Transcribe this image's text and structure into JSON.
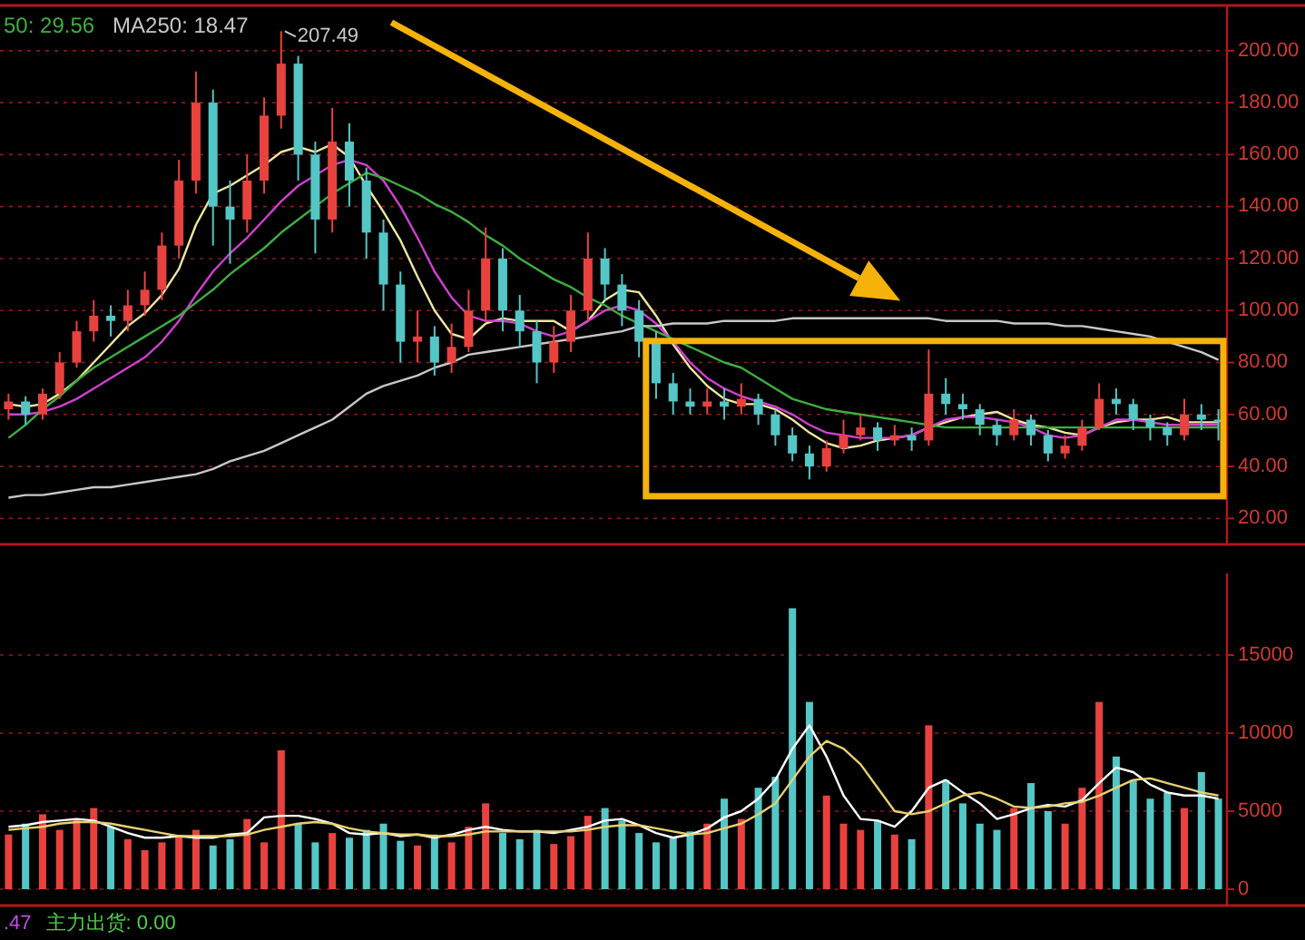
{
  "chart_data": [
    {
      "type": "candlestick",
      "categories": [
        null,
        null,
        null,
        null,
        null,
        null,
        null,
        null,
        null,
        null,
        null,
        null,
        null,
        null,
        null,
        null,
        null,
        null,
        null,
        null,
        null,
        null,
        null,
        null,
        null,
        null,
        null,
        null,
        null,
        null,
        null,
        null,
        null,
        null,
        null,
        null,
        null,
        null,
        null,
        null,
        null,
        null,
        null,
        null,
        null,
        null,
        null,
        null,
        null,
        null,
        null,
        null,
        null,
        null,
        null,
        null,
        null,
        null,
        null,
        null,
        null,
        null,
        null,
        null,
        null,
        null,
        null,
        null,
        null,
        null,
        null,
        null
      ],
      "ohlc": [
        [
          62,
          68,
          58,
          65
        ],
        [
          65,
          67,
          56,
          60
        ],
        [
          60,
          70,
          58,
          68
        ],
        [
          68,
          84,
          66,
          80
        ],
        [
          80,
          96,
          78,
          92
        ],
        [
          92,
          104,
          88,
          98
        ],
        [
          98,
          102,
          90,
          96
        ],
        [
          96,
          108,
          92,
          102
        ],
        [
          102,
          115,
          98,
          108
        ],
        [
          108,
          130,
          104,
          125
        ],
        [
          125,
          158,
          120,
          150
        ],
        [
          150,
          192,
          145,
          180
        ],
        [
          180,
          185,
          125,
          140
        ],
        [
          140,
          150,
          118,
          135
        ],
        [
          135,
          160,
          130,
          150
        ],
        [
          150,
          182,
          145,
          175
        ],
        [
          175,
          207.49,
          170,
          195
        ],
        [
          195,
          198,
          150,
          160
        ],
        [
          160,
          165,
          122,
          135
        ],
        [
          135,
          178,
          130,
          165
        ],
        [
          165,
          172,
          140,
          150
        ],
        [
          150,
          155,
          120,
          130
        ],
        [
          130,
          135,
          100,
          110
        ],
        [
          110,
          115,
          80,
          88
        ],
        [
          88,
          100,
          80,
          90
        ],
        [
          90,
          94,
          75,
          80
        ],
        [
          80,
          95,
          76,
          86
        ],
        [
          86,
          108,
          84,
          100
        ],
        [
          100,
          132,
          96,
          120
        ],
        [
          120,
          124,
          92,
          100
        ],
        [
          100,
          106,
          86,
          92
        ],
        [
          92,
          96,
          72,
          80
        ],
        [
          80,
          94,
          76,
          88
        ],
        [
          88,
          106,
          84,
          100
        ],
        [
          100,
          130,
          96,
          120
        ],
        [
          120,
          124,
          104,
          110
        ],
        [
          110,
          114,
          94,
          100
        ],
        [
          100,
          104,
          82,
          88
        ],
        [
          88,
          92,
          66,
          72
        ],
        [
          72,
          76,
          60,
          65
        ],
        [
          65,
          70,
          60,
          63
        ],
        [
          63,
          70,
          60,
          65
        ],
        [
          65,
          70,
          58,
          63
        ],
        [
          63,
          72,
          60,
          66
        ],
        [
          66,
          68,
          56,
          60
        ],
        [
          60,
          62,
          48,
          52
        ],
        [
          52,
          55,
          42,
          45
        ],
        [
          45,
          48,
          35,
          40
        ],
        [
          40,
          50,
          38,
          47
        ],
        [
          47,
          58,
          45,
          52
        ],
        [
          52,
          60,
          50,
          55
        ],
        [
          55,
          57,
          46,
          50
        ],
        [
          50,
          56,
          48,
          52
        ],
        [
          52,
          55,
          46,
          50
        ],
        [
          50,
          85,
          48,
          68
        ],
        [
          68,
          74,
          60,
          64
        ],
        [
          64,
          68,
          58,
          62
        ],
        [
          62,
          64,
          52,
          56
        ],
        [
          56,
          58,
          48,
          52
        ],
        [
          52,
          62,
          50,
          58
        ],
        [
          58,
          60,
          48,
          52
        ],
        [
          52,
          54,
          42,
          45
        ],
        [
          45,
          52,
          43,
          48
        ],
        [
          48,
          58,
          46,
          55
        ],
        [
          55,
          72,
          54,
          66
        ],
        [
          66,
          70,
          60,
          64
        ],
        [
          64,
          66,
          54,
          58
        ],
        [
          58,
          60,
          50,
          55
        ],
        [
          55,
          57,
          48,
          52
        ],
        [
          52,
          66,
          50,
          60
        ],
        [
          60,
          64,
          54,
          58
        ],
        [
          58,
          62,
          50,
          57
        ]
      ],
      "colors": [
        "#e8423f",
        "#54c6c6",
        "#e8423f",
        "#e8423f",
        "#e8423f",
        "#e8423f",
        "#54c6c6",
        "#e8423f",
        "#e8423f",
        "#e8423f",
        "#e8423f",
        "#e8423f",
        "#54c6c6",
        "#54c6c6",
        "#e8423f",
        "#e8423f",
        "#e8423f",
        "#54c6c6",
        "#54c6c6",
        "#e8423f",
        "#54c6c6",
        "#54c6c6",
        "#54c6c6",
        "#54c6c6",
        "#e8423f",
        "#54c6c6",
        "#e8423f",
        "#e8423f",
        "#e8423f",
        "#54c6c6",
        "#54c6c6",
        "#54c6c6",
        "#e8423f",
        "#e8423f",
        "#e8423f",
        "#54c6c6",
        "#54c6c6",
        "#54c6c6",
        "#54c6c6",
        "#54c6c6",
        "#54c6c6",
        "#e8423f",
        "#54c6c6",
        "#e8423f",
        "#54c6c6",
        "#54c6c6",
        "#54c6c6",
        "#54c6c6",
        "#e8423f",
        "#e8423f",
        "#e8423f",
        "#54c6c6",
        "#e8423f",
        "#54c6c6",
        "#e8423f",
        "#54c6c6",
        "#54c6c6",
        "#54c6c6",
        "#54c6c6",
        "#e8423f",
        "#54c6c6",
        "#54c6c6",
        "#e8423f",
        "#e8423f",
        "#e8423f",
        "#54c6c6",
        "#54c6c6",
        "#54c6c6",
        "#54c6c6",
        "#e8423f",
        "#54c6c6",
        "#54c6c6"
      ],
      "series": [
        {
          "type": "line",
          "color": "#f0e6a0",
          "values": [
            64,
            63,
            64,
            68,
            73,
            80,
            87,
            94,
            99,
            106,
            116,
            133,
            145,
            148,
            152,
            156,
            161,
            163,
            161,
            164,
            159,
            148,
            138,
            127,
            113,
            100,
            91,
            89,
            95,
            97,
            96,
            96,
            96,
            92,
            96,
            104,
            108,
            107,
            98,
            87,
            78,
            71,
            66,
            64,
            64,
            62,
            58,
            53,
            49,
            47,
            48,
            50,
            51,
            52,
            55,
            57,
            59,
            60,
            61,
            58,
            56,
            55,
            53,
            52,
            55,
            57,
            58,
            58,
            59,
            57,
            57,
            57
          ]
        },
        {
          "type": "line",
          "color": "#d040d0",
          "values": [
            60,
            60,
            61,
            63,
            66,
            70,
            74,
            78,
            82,
            88,
            96,
            106,
            115,
            122,
            128,
            135,
            142,
            148,
            152,
            156,
            158,
            156,
            150,
            140,
            128,
            115,
            105,
            98,
            96,
            96,
            95,
            92,
            90,
            92,
            96,
            100,
            102,
            100,
            95,
            88,
            80,
            74,
            70,
            67,
            65,
            63,
            60,
            56,
            53,
            52,
            51,
            51,
            51,
            52,
            55,
            58,
            59,
            59,
            58,
            57,
            55,
            52,
            51,
            52,
            55,
            58,
            58,
            57,
            56,
            56,
            56,
            56
          ]
        },
        {
          "type": "line",
          "name": "50: 29.56",
          "color": "#3fae3f",
          "values": [
            51,
            56,
            62,
            67,
            73,
            78,
            82,
            86,
            90,
            94,
            98,
            103,
            108,
            114,
            119,
            124,
            130,
            135,
            140,
            145,
            149,
            153,
            151,
            148,
            145,
            141,
            138,
            134,
            129,
            125,
            120,
            116,
            112,
            109,
            105,
            102,
            98,
            95,
            92,
            89,
            86,
            83,
            80,
            78,
            74,
            70,
            66,
            64,
            62,
            61,
            60,
            59,
            58,
            57,
            56,
            55,
            55,
            55,
            55,
            55,
            55,
            55,
            55,
            55,
            55,
            55,
            55,
            55,
            55,
            55,
            55,
            55
          ]
        },
        {
          "type": "line",
          "name": "MA250: 18.47",
          "color": "#c8c8c8",
          "values": [
            28,
            29,
            29,
            30,
            31,
            32,
            32,
            33,
            34,
            35,
            36,
            37,
            39,
            42,
            44,
            46,
            49,
            52,
            55,
            58,
            63,
            68,
            71,
            73,
            75,
            78,
            80,
            83,
            84,
            85,
            86,
            87,
            88,
            89,
            90,
            91,
            92,
            94,
            94,
            95,
            95,
            95,
            96,
            96,
            96,
            96,
            97,
            97,
            97,
            97,
            97,
            97,
            97,
            97,
            97,
            96,
            96,
            96,
            96,
            95,
            95,
            95,
            94,
            94,
            93,
            92,
            91,
            90,
            88,
            86,
            84,
            81
          ]
        }
      ],
      "ylim": [
        10,
        216
      ],
      "yticks": [
        {
          "value": 20,
          "label": "20.00"
        },
        {
          "value": 40,
          "label": "40.00"
        },
        {
          "value": 60,
          "label": "60.00"
        },
        {
          "value": 80,
          "label": "80.00"
        },
        {
          "value": 100,
          "label": "100.00"
        },
        {
          "value": 120,
          "label": "120.00"
        },
        {
          "value": 140,
          "label": "140.00"
        },
        {
          "value": 160,
          "label": "160.00"
        },
        {
          "value": 180,
          "label": "180.00"
        },
        {
          "value": 200,
          "label": "200.00"
        }
      ],
      "annotations": [
        "207.49"
      ],
      "grid": "y",
      "legend": "top left"
    },
    {
      "type": "bar",
      "categories": [
        null,
        null,
        null,
        null,
        null,
        null,
        null,
        null,
        null,
        null,
        null,
        null,
        null,
        null,
        null,
        null,
        null,
        null,
        null,
        null,
        null,
        null,
        null,
        null,
        null,
        null,
        null,
        null,
        null,
        null,
        null,
        null,
        null,
        null,
        null,
        null,
        null,
        null,
        null,
        null,
        null,
        null,
        null,
        null,
        null,
        null,
        null,
        null,
        null,
        null,
        null,
        null,
        null,
        null,
        null,
        null,
        null,
        null,
        null,
        null,
        null,
        null,
        null,
        null,
        null,
        null,
        null,
        null,
        null,
        null,
        null,
        null
      ],
      "series": [
        {
          "type": "bar",
          "values": [
            3500,
            4200,
            4800,
            3800,
            4500,
            5200,
            4000,
            3200,
            2500,
            3000,
            3400,
            3800,
            2800,
            3200,
            4500,
            3000,
            8900,
            4200,
            3000,
            3600,
            3300,
            3800,
            4200,
            3100,
            2800,
            3500,
            3000,
            4000,
            5500,
            3600,
            3200,
            3800,
            2900,
            3400,
            4700,
            5200,
            4400,
            3600,
            3000,
            3300,
            3700,
            4200,
            5800,
            4500,
            6500,
            7200,
            18000,
            12000,
            6000,
            4200,
            3800,
            4400,
            3500,
            3200,
            10500,
            7000,
            5500,
            4200,
            3800,
            5200,
            6800,
            5000,
            4200,
            6500,
            12000,
            8500,
            7000,
            5800,
            6200,
            5200,
            7500,
            5800
          ],
          "colors": [
            "#e8423f",
            "#54c6c6",
            "#e8423f",
            "#e8423f",
            "#e8423f",
            "#e8423f",
            "#54c6c6",
            "#e8423f",
            "#e8423f",
            "#e8423f",
            "#e8423f",
            "#e8423f",
            "#54c6c6",
            "#54c6c6",
            "#e8423f",
            "#e8423f",
            "#e8423f",
            "#54c6c6",
            "#54c6c6",
            "#e8423f",
            "#54c6c6",
            "#54c6c6",
            "#54c6c6",
            "#54c6c6",
            "#e8423f",
            "#54c6c6",
            "#e8423f",
            "#e8423f",
            "#e8423f",
            "#54c6c6",
            "#54c6c6",
            "#54c6c6",
            "#e8423f",
            "#e8423f",
            "#e8423f",
            "#54c6c6",
            "#54c6c6",
            "#54c6c6",
            "#54c6c6",
            "#54c6c6",
            "#54c6c6",
            "#e8423f",
            "#54c6c6",
            "#e8423f",
            "#54c6c6",
            "#54c6c6",
            "#54c6c6",
            "#54c6c6",
            "#e8423f",
            "#e8423f",
            "#e8423f",
            "#54c6c6",
            "#e8423f",
            "#54c6c6",
            "#e8423f",
            "#54c6c6",
            "#54c6c6",
            "#54c6c6",
            "#54c6c6",
            "#e8423f",
            "#54c6c6",
            "#54c6c6",
            "#e8423f",
            "#e8423f",
            "#e8423f",
            "#54c6c6",
            "#54c6c6",
            "#54c6c6",
            "#54c6c6",
            "#e8423f",
            "#54c6c6",
            "#54c6c6"
          ]
        },
        {
          "type": "line",
          "color": "#ffffff",
          "values": [
            4000,
            4100,
            4300,
            4400,
            4500,
            4400,
            4000,
            3600,
            3300,
            3300,
            3400,
            3300,
            3300,
            3500,
            3600,
            4600,
            4700,
            4700,
            4500,
            4200,
            3600,
            3500,
            3600,
            3400,
            3500,
            3300,
            3500,
            3800,
            4000,
            3800,
            3700,
            3700,
            3600,
            3800,
            4000,
            4400,
            4500,
            4100,
            3600,
            3300,
            3500,
            3900,
            4600,
            5000,
            5800,
            7000,
            9000,
            10500,
            8500,
            6000,
            4500,
            4400,
            4000,
            5000,
            6500,
            7000,
            6200,
            5500,
            4500,
            4800,
            5200,
            5400,
            5300,
            5700,
            6800,
            7800,
            7500,
            6700,
            6200,
            6000,
            6000,
            5800
          ]
        },
        {
          "type": "line",
          "color": "#e8d070",
          "values": [
            3800,
            3900,
            4000,
            4200,
            4300,
            4300,
            4200,
            4000,
            3800,
            3600,
            3400,
            3400,
            3400,
            3400,
            3500,
            3800,
            4000,
            4200,
            4300,
            4200,
            3900,
            3700,
            3600,
            3500,
            3500,
            3400,
            3400,
            3500,
            3700,
            3700,
            3700,
            3700,
            3700,
            3700,
            3800,
            4000,
            4100,
            4100,
            3900,
            3700,
            3500,
            3600,
            3900,
            4200,
            4800,
            5500,
            7000,
            8500,
            9500,
            9000,
            8000,
            6500,
            5000,
            4800,
            5000,
            5500,
            6000,
            6200,
            5800,
            5300,
            5200,
            5300,
            5500,
            5600,
            6000,
            6500,
            7000,
            7100,
            6800,
            6500,
            6200,
            6000
          ]
        }
      ],
      "ylim": [
        0,
        20000
      ],
      "yticks": [
        0,
        5000,
        10000,
        15000
      ],
      "annotations": [
        ".47",
        "主力出货: 0.00"
      ],
      "grid": "y"
    }
  ]
}
